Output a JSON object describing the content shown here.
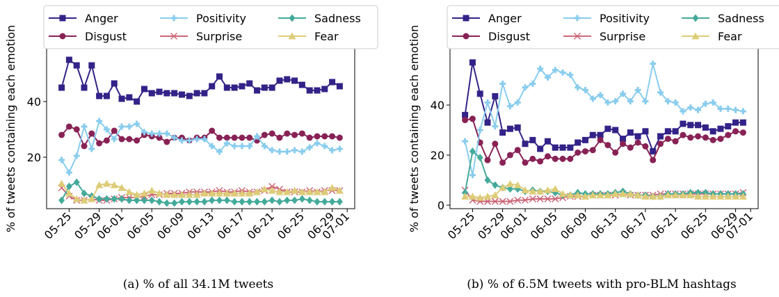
{
  "chart_data": [
    {
      "type": "line",
      "ylabel": "% of tweets containing each emotion",
      "caption": "(a) % of all 34.1M tweets",
      "x": [
        "05-24",
        "05-25",
        "05-26",
        "05-27",
        "05-28",
        "05-29",
        "05-30",
        "05-31",
        "06-01",
        "06-02",
        "06-03",
        "06-04",
        "06-05",
        "06-06",
        "06-07",
        "06-08",
        "06-09",
        "06-10",
        "06-11",
        "06-12",
        "06-13",
        "06-14",
        "06-15",
        "06-16",
        "06-17",
        "06-18",
        "06-19",
        "06-20",
        "06-21",
        "06-22",
        "06-23",
        "06-24",
        "06-25",
        "06-26",
        "06-27",
        "06-28",
        "06-29",
        "06-30"
      ],
      "xlim": [
        "05-22",
        "07-02"
      ],
      "xticks": [
        "05-25",
        "05-29",
        "06-01",
        "06-05",
        "06-09",
        "06-13",
        "06-17",
        "06-21",
        "06-25",
        "06-29",
        "07-01"
      ],
      "ylim": [
        1.5,
        59
      ],
      "yticks": [
        20,
        40
      ],
      "legend": "top",
      "series": [
        {
          "name": "Anger",
          "color": "#332288",
          "marker": "square",
          "values": [
            45,
            55,
            53,
            45,
            53,
            42,
            42,
            46.5,
            41,
            41.5,
            40,
            44.5,
            43,
            43.5,
            43,
            43,
            42.5,
            42,
            43,
            43,
            45.5,
            49,
            45,
            45,
            45.5,
            46.5,
            44,
            45,
            45,
            47.5,
            48,
            47.5,
            46,
            44,
            44,
            44.5,
            47,
            45.5
          ]
        },
        {
          "name": "Disgust",
          "color": "#882255",
          "marker": "circle",
          "values": [
            28,
            31,
            30,
            24,
            28.5,
            25,
            26,
            29.5,
            26.5,
            26.5,
            26,
            28,
            27.5,
            27,
            25.5,
            27,
            27,
            26,
            27,
            27,
            29.5,
            27,
            27,
            27,
            27,
            27,
            26,
            28,
            28.5,
            27,
            28.5,
            28,
            28.5,
            27,
            27.5,
            27.5,
            27.5,
            27
          ]
        },
        {
          "name": "Positivity",
          "color": "#88ccee",
          "marker": "plus",
          "values": [
            19,
            14.5,
            20.5,
            31,
            23,
            33,
            30,
            26.5,
            31,
            31,
            32,
            29,
            28.5,
            28.5,
            28.5,
            27,
            26,
            26,
            26.5,
            26.5,
            24,
            22,
            25,
            24,
            24,
            24,
            27.5,
            24,
            22.5,
            22,
            22,
            22.5,
            22,
            23.5,
            25,
            24,
            22.5,
            23
          ]
        },
        {
          "name": "Surprise",
          "color": "#cc6677",
          "marker": "x",
          "values": [
            9,
            6,
            4.5,
            4.5,
            5,
            4.5,
            4.5,
            5,
            5.5,
            5.5,
            5.5,
            6,
            6.5,
            6.5,
            7,
            7,
            7,
            7.5,
            7.5,
            7.5,
            7.5,
            8,
            7.5,
            7.5,
            8,
            7.5,
            7.5,
            8,
            9.5,
            8.5,
            7.5,
            7.5,
            7.5,
            8,
            7.5,
            8,
            8,
            8
          ]
        },
        {
          "name": "Sadness",
          "color": "#44aa99",
          "marker": "diamond",
          "values": [
            4.5,
            9.5,
            11,
            7,
            6,
            5,
            5,
            5,
            5,
            4.5,
            4.5,
            4.5,
            4.5,
            4,
            3.5,
            3.5,
            4,
            4,
            4,
            4,
            4.5,
            4.5,
            4.5,
            4,
            4,
            4,
            4,
            4,
            4.5,
            4,
            4.5,
            4.5,
            5,
            4.5,
            4,
            4,
            4,
            4
          ]
        },
        {
          "name": "Fear",
          "color": "#ddcc77",
          "marker": "triangle",
          "values": [
            10.5,
            7,
            5,
            4.5,
            5,
            10,
            10.5,
            10,
            9,
            7.5,
            6.5,
            7,
            8,
            7,
            6.5,
            6.5,
            6.5,
            6.5,
            6.5,
            7,
            7,
            7,
            7,
            7,
            7,
            7,
            7.5,
            8.5,
            8,
            7.5,
            7.5,
            8,
            7.5,
            7.5,
            7.5,
            7.5,
            9,
            8
          ]
        }
      ]
    },
    {
      "type": "line",
      "ylabel": "% of tweets containing each emotion",
      "caption": "(b) % of 6.5M tweets with pro-BLM hashtags",
      "x": [
        "05-24",
        "05-25",
        "05-26",
        "05-27",
        "05-28",
        "05-29",
        "05-30",
        "05-31",
        "06-01",
        "06-02",
        "06-03",
        "06-04",
        "06-05",
        "06-06",
        "06-07",
        "06-08",
        "06-09",
        "06-10",
        "06-11",
        "06-12",
        "06-13",
        "06-14",
        "06-15",
        "06-16",
        "06-17",
        "06-18",
        "06-19",
        "06-20",
        "06-21",
        "06-22",
        "06-23",
        "06-24",
        "06-25",
        "06-26",
        "06-27",
        "06-28",
        "06-29",
        "06-30"
      ],
      "xlim": [
        "05-22",
        "07-02"
      ],
      "xticks": [
        "05-25",
        "05-29",
        "06-01",
        "06-05",
        "06-09",
        "06-13",
        "06-17",
        "06-21",
        "06-25",
        "06-29",
        "07-01"
      ],
      "ylim": [
        -1.4,
        62.5
      ],
      "yticks": [
        0,
        20,
        40
      ],
      "legend": "top",
      "series": [
        {
          "name": "Anger",
          "color": "#332288",
          "marker": "square",
          "values": [
            36,
            57,
            44.5,
            33,
            43.5,
            29,
            30.5,
            31,
            24.5,
            26,
            22.5,
            25.5,
            23,
            23,
            23,
            25,
            26,
            28,
            28,
            30.5,
            30,
            26.5,
            29,
            27.5,
            29.5,
            21.5,
            27.5,
            29.5,
            29.5,
            32.5,
            32,
            32,
            31,
            29.5,
            30.5,
            31.5,
            33,
            33
          ]
        },
        {
          "name": "Disgust",
          "color": "#882255",
          "marker": "circle",
          "values": [
            34,
            34.5,
            25,
            18,
            24.5,
            17,
            20,
            22,
            17,
            18.5,
            17.5,
            19.5,
            18.5,
            18.5,
            18.5,
            21,
            21.5,
            22,
            26,
            24,
            21,
            24.5,
            23,
            25,
            23.5,
            18,
            24.5,
            26.5,
            25.5,
            28,
            27,
            27.5,
            27,
            26,
            26.5,
            28,
            29.5,
            29
          ]
        },
        {
          "name": "Positivity",
          "color": "#88ccee",
          "marker": "plus",
          "values": [
            25.5,
            12,
            30,
            41,
            31.5,
            48.5,
            39.5,
            41,
            47,
            48.5,
            54.5,
            51,
            54,
            53,
            52,
            47,
            46,
            42.5,
            44,
            41,
            41.5,
            44.5,
            41.5,
            46,
            41.5,
            56.5,
            45,
            41.5,
            41,
            37.5,
            39,
            38,
            40.5,
            41,
            38.5,
            38.5,
            38,
            37.5
          ]
        },
        {
          "name": "Surprise",
          "color": "#cc6677",
          "marker": "x",
          "values": [
            6,
            2,
            1.5,
            1.5,
            1.5,
            1.5,
            1.5,
            2,
            2,
            2.5,
            2.5,
            2.5,
            2.5,
            3,
            3.5,
            3.5,
            3.5,
            4,
            4,
            4,
            4,
            4.5,
            4,
            4,
            4,
            4,
            4.5,
            4.5,
            4.5,
            4.5,
            4.5,
            4.5,
            4.5,
            4.5,
            4.5,
            4.5,
            4.5,
            5
          ]
        },
        {
          "name": "Sadness",
          "color": "#44aa99",
          "marker": "diamond",
          "values": [
            5,
            21.5,
            19,
            10,
            8,
            7,
            6.5,
            6.5,
            5.5,
            6,
            5.5,
            5.5,
            5,
            4,
            4,
            5,
            4.5,
            4.5,
            4.5,
            4.5,
            5,
            5.5,
            4.5,
            4,
            4,
            3.5,
            3.5,
            4.5,
            4.5,
            4.5,
            5,
            5,
            5,
            4.5,
            4.5,
            4.5,
            4.5,
            4.5
          ]
        },
        {
          "name": "Fear",
          "color": "#ddcc77",
          "marker": "triangle",
          "values": [
            3.5,
            3.5,
            3,
            3.5,
            4,
            7,
            8.5,
            8,
            6,
            5.5,
            5.5,
            6,
            6.5,
            4.5,
            4,
            4,
            3.5,
            4,
            4,
            4,
            4.5,
            4.5,
            4.5,
            4,
            3.5,
            3.5,
            3.5,
            4,
            4,
            4,
            4,
            3.5,
            3.5,
            3.5,
            3.5,
            3.5,
            3.5,
            3.5
          ]
        }
      ]
    }
  ]
}
